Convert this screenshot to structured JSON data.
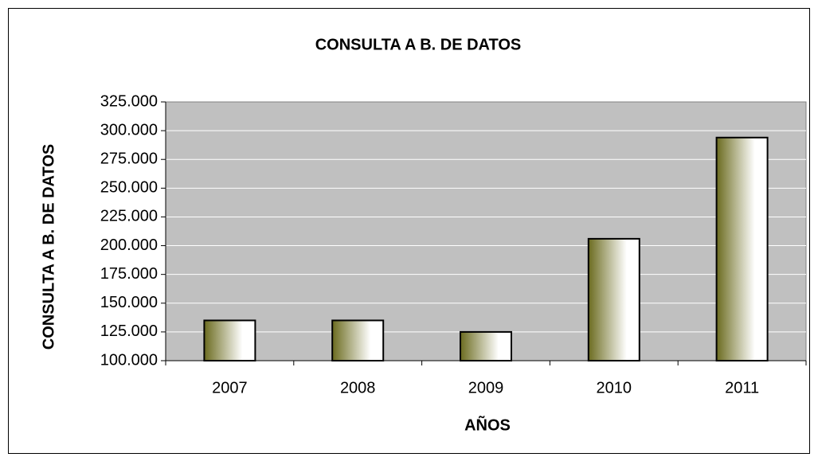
{
  "chart_data": {
    "type": "bar",
    "title": "CONSULTA A B. DE DATOS",
    "y_label": "CONSULTA A B. DE DATOS",
    "x_label": "AÑOS",
    "categories": [
      "2007",
      "2008",
      "2009",
      "2010",
      "2011"
    ],
    "values": [
      135000,
      135000,
      125000,
      206000,
      294000
    ],
    "color": "#6b6b1f",
    "ylim": [
      100000,
      325000
    ],
    "yticks": [
      {
        "value": 100000,
        "label": "100.000"
      },
      {
        "value": 125000,
        "label": "125.000"
      },
      {
        "value": 150000,
        "label": "150.000"
      },
      {
        "value": 175000,
        "label": "175.000"
      },
      {
        "value": 200000,
        "label": "200.000"
      },
      {
        "value": 225000,
        "label": "225.000"
      },
      {
        "value": 250000,
        "label": "250.000"
      },
      {
        "value": 275000,
        "label": "275.000"
      },
      {
        "value": 300000,
        "label": "300.000"
      },
      {
        "value": 325000,
        "label": "325.000"
      }
    ],
    "grid": true
  }
}
